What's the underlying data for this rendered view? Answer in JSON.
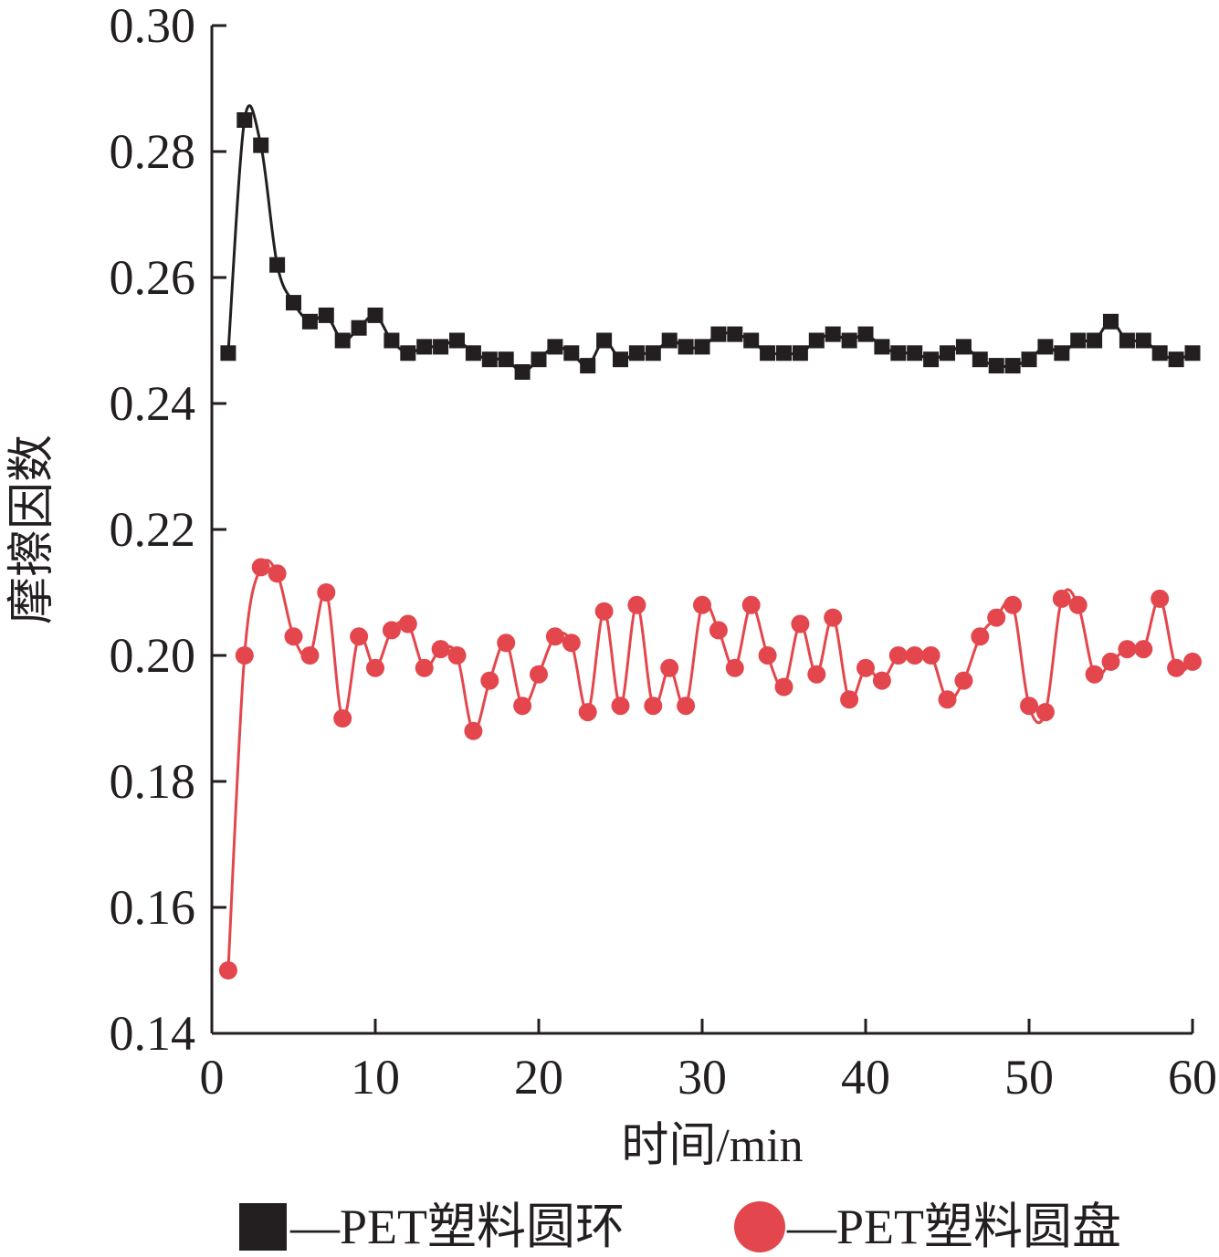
{
  "chart_data": {
    "type": "line",
    "xlabel": "时间/min",
    "ylabel": "摩擦因数",
    "xlim": [
      0,
      60
    ],
    "ylim": [
      0.14,
      0.3
    ],
    "xticks": [
      "0",
      "10",
      "20",
      "30",
      "40",
      "50",
      "60"
    ],
    "yticks": [
      "0.14",
      "0.16",
      "0.18",
      "0.20",
      "0.22",
      "0.24",
      "0.26",
      "0.28",
      "0.30"
    ],
    "grid": false,
    "legend_position": "bottom",
    "x": [
      1,
      2,
      3,
      4,
      5,
      6,
      7,
      8,
      9,
      10,
      11,
      12,
      13,
      14,
      15,
      16,
      17,
      18,
      19,
      20,
      21,
      22,
      23,
      24,
      25,
      26,
      27,
      28,
      29,
      30,
      31,
      32,
      33,
      34,
      35,
      36,
      37,
      38,
      39,
      40,
      41,
      42,
      43,
      44,
      45,
      46,
      47,
      48,
      49,
      50,
      51,
      52,
      53,
      54,
      55,
      56,
      57,
      58,
      59,
      60
    ],
    "series": [
      {
        "name": "—PET塑料圆环",
        "marker": "square",
        "color": "#231f20",
        "values": [
          0.248,
          0.285,
          0.281,
          0.262,
          0.256,
          0.253,
          0.254,
          0.25,
          0.252,
          0.254,
          0.25,
          0.248,
          0.249,
          0.249,
          0.25,
          0.248,
          0.247,
          0.247,
          0.245,
          0.247,
          0.249,
          0.248,
          0.246,
          0.25,
          0.247,
          0.248,
          0.248,
          0.25,
          0.249,
          0.249,
          0.251,
          0.251,
          0.25,
          0.248,
          0.248,
          0.248,
          0.25,
          0.251,
          0.25,
          0.251,
          0.249,
          0.248,
          0.248,
          0.247,
          0.248,
          0.249,
          0.247,
          0.246,
          0.246,
          0.247,
          0.249,
          0.248,
          0.25,
          0.25,
          0.253,
          0.25,
          0.25,
          0.248,
          0.247,
          0.248
        ]
      },
      {
        "name": "—PET塑料圆盘",
        "marker": "circle",
        "color": "#e3474d",
        "values": [
          0.15,
          0.2,
          0.214,
          0.213,
          0.203,
          0.2,
          0.21,
          0.19,
          0.203,
          0.198,
          0.204,
          0.205,
          0.198,
          0.201,
          0.2,
          0.188,
          0.196,
          0.202,
          0.192,
          0.197,
          0.203,
          0.202,
          0.191,
          0.207,
          0.192,
          0.208,
          0.192,
          0.198,
          0.192,
          0.208,
          0.204,
          0.198,
          0.208,
          0.2,
          0.195,
          0.205,
          0.197,
          0.206,
          0.193,
          0.198,
          0.196,
          0.2,
          0.2,
          0.2,
          0.193,
          0.196,
          0.203,
          0.206,
          0.208,
          0.192,
          0.191,
          0.209,
          0.208,
          0.197,
          0.199,
          0.201,
          0.201,
          0.209,
          0.198,
          0.199
        ]
      }
    ]
  }
}
